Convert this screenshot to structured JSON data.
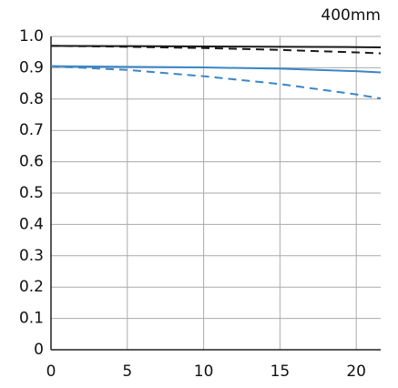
{
  "chart_data": {
    "type": "line",
    "title": "400mm",
    "x": [
      0,
      5,
      10,
      15,
      20,
      21.6
    ],
    "series": [
      {
        "color": "#1a1a1a",
        "dashed": false,
        "values": [
          0.97,
          0.969,
          0.968,
          0.967,
          0.966,
          0.965
        ]
      },
      {
        "color": "#1a1a1a",
        "dashed": true,
        "values": [
          0.97,
          0.967,
          0.963,
          0.957,
          0.949,
          0.946
        ]
      },
      {
        "color": "#3a86c8",
        "dashed": false,
        "values": [
          0.905,
          0.903,
          0.901,
          0.897,
          0.889,
          0.885
        ]
      },
      {
        "color": "#3a86c8",
        "dashed": true,
        "values": [
          0.905,
          0.893,
          0.873,
          0.848,
          0.815,
          0.802
        ]
      }
    ],
    "xlim": [
      0,
      21.6
    ],
    "xticks": [
      0,
      5,
      10,
      15,
      20
    ],
    "ylim": [
      0,
      1
    ],
    "yticks": [
      0,
      0.1,
      0.2,
      0.3,
      0.4,
      0.5,
      0.6,
      0.7,
      0.8,
      0.9,
      {
        "value": 1,
        "label": "1.0"
      }
    ],
    "grid": true
  }
}
